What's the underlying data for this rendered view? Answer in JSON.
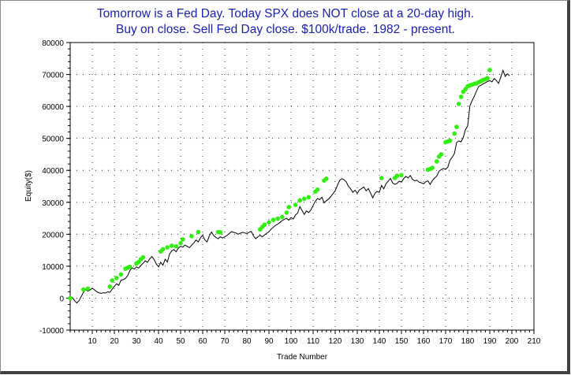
{
  "chart_data": {
    "type": "line",
    "title_lines": [
      "Tomorrow is a Fed Day. Today SPX does NOT close at a 20-day high.",
      "Buy on close. Sell Fed Day close. $100k/trade. 1982 - present."
    ],
    "xlabel": "Trade Number",
    "ylabel": "Equity($)",
    "xlim": [
      0,
      210
    ],
    "ylim": [
      -10000,
      80000
    ],
    "x_ticks": [
      10,
      20,
      30,
      40,
      50,
      60,
      70,
      80,
      90,
      100,
      110,
      120,
      130,
      140,
      150,
      160,
      170,
      180,
      190,
      200,
      210
    ],
    "y_ticks": [
      -10000,
      0,
      10000,
      20000,
      30000,
      40000,
      50000,
      60000,
      70000,
      80000
    ],
    "grid": true,
    "line_color": "#000000",
    "highlight_color": "#33ee11",
    "series": [
      {
        "values": [
          [
            0,
            0
          ],
          [
            1,
            200
          ],
          [
            2,
            -800
          ],
          [
            3,
            -1500
          ],
          [
            4,
            -800
          ],
          [
            5,
            500
          ],
          [
            6,
            1800
          ],
          [
            7,
            2700
          ],
          [
            8,
            2200
          ],
          [
            9,
            2600
          ],
          [
            10,
            3100
          ],
          [
            11,
            2600
          ],
          [
            12,
            2000
          ],
          [
            13,
            1700
          ],
          [
            14,
            1500
          ],
          [
            15,
            1700
          ],
          [
            16,
            1600
          ],
          [
            17,
            2000
          ],
          [
            18,
            1800
          ],
          [
            19,
            2800
          ],
          [
            20,
            3700
          ],
          [
            21,
            4500
          ],
          [
            22,
            4000
          ],
          [
            23,
            5600
          ],
          [
            24,
            5800
          ],
          [
            25,
            6200
          ],
          [
            26,
            7000
          ],
          [
            27,
            8600
          ],
          [
            28,
            9500
          ],
          [
            29,
            9100
          ],
          [
            30,
            9800
          ],
          [
            31,
            9400
          ],
          [
            32,
            10200
          ],
          [
            33,
            10900
          ],
          [
            34,
            11700
          ],
          [
            35,
            11200
          ],
          [
            36,
            12300
          ],
          [
            37,
            13000
          ],
          [
            38,
            12100
          ],
          [
            39,
            10700
          ],
          [
            40,
            9800
          ],
          [
            41,
            11200
          ],
          [
            42,
            10300
          ],
          [
            43,
            12200
          ],
          [
            44,
            11300
          ],
          [
            45,
            13800
          ],
          [
            46,
            14800
          ],
          [
            47,
            15200
          ],
          [
            48,
            14500
          ],
          [
            49,
            15700
          ],
          [
            50,
            16200
          ],
          [
            51,
            16000
          ],
          [
            52,
            16600
          ],
          [
            53,
            16200
          ],
          [
            54,
            15800
          ],
          [
            55,
            16600
          ],
          [
            56,
            17300
          ],
          [
            57,
            18200
          ],
          [
            58,
            17600
          ],
          [
            59,
            18900
          ],
          [
            60,
            19700
          ],
          [
            61,
            18200
          ],
          [
            62,
            17600
          ],
          [
            63,
            19500
          ],
          [
            64,
            20700
          ],
          [
            65,
            19600
          ],
          [
            66,
            19000
          ],
          [
            67,
            18600
          ],
          [
            68,
            19200
          ],
          [
            69,
            18800
          ],
          [
            70,
            19200
          ],
          [
            71,
            19600
          ],
          [
            72,
            20200
          ],
          [
            73,
            20800
          ],
          [
            74,
            20600
          ],
          [
            75,
            20400
          ],
          [
            76,
            20000
          ],
          [
            77,
            20300
          ],
          [
            78,
            20600
          ],
          [
            79,
            20400
          ],
          [
            80,
            20200
          ],
          [
            81,
            20600
          ],
          [
            82,
            20900
          ],
          [
            83,
            19500
          ],
          [
            84,
            18600
          ],
          [
            85,
            19200
          ],
          [
            86,
            19700
          ],
          [
            87,
            19200
          ],
          [
            88,
            19800
          ],
          [
            89,
            20300
          ],
          [
            90,
            20800
          ],
          [
            91,
            21600
          ],
          [
            92,
            22200
          ],
          [
            93,
            22800
          ],
          [
            94,
            23200
          ],
          [
            95,
            23700
          ],
          [
            96,
            24300
          ],
          [
            97,
            24700
          ],
          [
            98,
            25000
          ],
          [
            99,
            24400
          ],
          [
            100,
            25200
          ],
          [
            101,
            24800
          ],
          [
            102,
            26000
          ],
          [
            103,
            26600
          ],
          [
            104,
            28700
          ],
          [
            105,
            27400
          ],
          [
            106,
            26200
          ],
          [
            107,
            27300
          ],
          [
            108,
            26800
          ],
          [
            109,
            27600
          ],
          [
            110,
            29000
          ],
          [
            111,
            30300
          ],
          [
            112,
            31200
          ],
          [
            113,
            30800
          ],
          [
            114,
            31600
          ],
          [
            115,
            29800
          ],
          [
            116,
            30500
          ],
          [
            117,
            31000
          ],
          [
            118,
            31800
          ],
          [
            119,
            32700
          ],
          [
            120,
            33600
          ],
          [
            121,
            35300
          ],
          [
            122,
            36800
          ],
          [
            123,
            37400
          ],
          [
            124,
            37100
          ],
          [
            125,
            36400
          ],
          [
            126,
            35000
          ],
          [
            127,
            34200
          ],
          [
            128,
            33100
          ],
          [
            129,
            33800
          ],
          [
            130,
            32800
          ],
          [
            131,
            33900
          ],
          [
            132,
            34300
          ],
          [
            133,
            34800
          ],
          [
            134,
            33600
          ],
          [
            135,
            34300
          ],
          [
            136,
            32900
          ],
          [
            137,
            31400
          ],
          [
            138,
            32800
          ],
          [
            139,
            33400
          ],
          [
            140,
            33100
          ],
          [
            141,
            35300
          ],
          [
            142,
            34200
          ],
          [
            143,
            35800
          ],
          [
            144,
            36600
          ],
          [
            145,
            37500
          ],
          [
            146,
            36100
          ],
          [
            147,
            35600
          ],
          [
            148,
            35900
          ],
          [
            149,
            36600
          ],
          [
            150,
            36300
          ],
          [
            151,
            37400
          ],
          [
            152,
            38100
          ],
          [
            153,
            37600
          ],
          [
            154,
            38400
          ],
          [
            155,
            37200
          ],
          [
            156,
            36700
          ],
          [
            157,
            36900
          ],
          [
            158,
            36300
          ],
          [
            159,
            36100
          ],
          [
            160,
            35800
          ],
          [
            161,
            36400
          ],
          [
            162,
            36700
          ],
          [
            163,
            35600
          ],
          [
            164,
            36800
          ],
          [
            165,
            37600
          ],
          [
            166,
            38200
          ],
          [
            167,
            39700
          ],
          [
            168,
            40200
          ],
          [
            169,
            40600
          ],
          [
            170,
            40300
          ],
          [
            171,
            41000
          ],
          [
            172,
            43200
          ],
          [
            173,
            44100
          ],
          [
            174,
            45300
          ],
          [
            175,
            48700
          ],
          [
            176,
            49200
          ],
          [
            177,
            48900
          ],
          [
            178,
            50300
          ],
          [
            179,
            52800
          ],
          [
            180,
            53900
          ],
          [
            181,
            60200
          ],
          [
            182,
            61800
          ],
          [
            183,
            63200
          ],
          [
            184,
            64800
          ],
          [
            185,
            66300
          ],
          [
            186,
            66600
          ],
          [
            187,
            67100
          ],
          [
            188,
            67400
          ],
          [
            189,
            67800
          ],
          [
            190,
            68100
          ],
          [
            191,
            67700
          ],
          [
            192,
            68700
          ],
          [
            193,
            68100
          ],
          [
            194,
            67200
          ],
          [
            195,
            69200
          ],
          [
            196,
            71300
          ],
          [
            197,
            69400
          ],
          [
            198,
            70200
          ],
          [
            199,
            69600
          ]
        ]
      }
    ],
    "highlight_points": [
      [
        0,
        0
      ],
      [
        6,
        2700
      ],
      [
        8,
        3000
      ],
      [
        18,
        3600
      ],
      [
        19,
        5500
      ],
      [
        21,
        6300
      ],
      [
        23,
        7400
      ],
      [
        25,
        9200
      ],
      [
        26,
        9500
      ],
      [
        27,
        9800
      ],
      [
        30,
        10800
      ],
      [
        31,
        11300
      ],
      [
        32,
        12200
      ],
      [
        33,
        12800
      ],
      [
        41,
        14600
      ],
      [
        42,
        15300
      ],
      [
        44,
        15900
      ],
      [
        46,
        16400
      ],
      [
        48,
        16200
      ],
      [
        50,
        17200
      ],
      [
        51,
        18400
      ],
      [
        55,
        19400
      ],
      [
        58,
        20700
      ],
      [
        67,
        20700
      ],
      [
        68,
        20600
      ],
      [
        86,
        21500
      ],
      [
        87,
        22300
      ],
      [
        88,
        23000
      ],
      [
        90,
        23700
      ],
      [
        92,
        24500
      ],
      [
        94,
        24900
      ],
      [
        96,
        25400
      ],
      [
        98,
        26800
      ],
      [
        99,
        28500
      ],
      [
        102,
        29200
      ],
      [
        104,
        30600
      ],
      [
        106,
        31100
      ],
      [
        108,
        31600
      ],
      [
        111,
        33300
      ],
      [
        112,
        34000
      ],
      [
        115,
        36800
      ],
      [
        116,
        37400
      ],
      [
        141,
        37600
      ],
      [
        147,
        37600
      ],
      [
        148,
        38300
      ],
      [
        150,
        38500
      ],
      [
        162,
        40200
      ],
      [
        163,
        40400
      ],
      [
        164,
        40800
      ],
      [
        166,
        42800
      ],
      [
        167,
        44300
      ],
      [
        168,
        45000
      ],
      [
        170,
        48800
      ],
      [
        171,
        49000
      ],
      [
        172,
        49300
      ],
      [
        174,
        51500
      ],
      [
        175,
        53600
      ],
      [
        176,
        60800
      ],
      [
        177,
        63000
      ],
      [
        178,
        64600
      ],
      [
        179,
        65400
      ],
      [
        180,
        66300
      ],
      [
        181,
        66600
      ],
      [
        182,
        66800
      ],
      [
        183,
        67100
      ],
      [
        184,
        67200
      ],
      [
        185,
        67600
      ],
      [
        186,
        67900
      ],
      [
        187,
        68300
      ],
      [
        188,
        68500
      ],
      [
        189,
        68800
      ],
      [
        190,
        71400
      ]
    ]
  }
}
